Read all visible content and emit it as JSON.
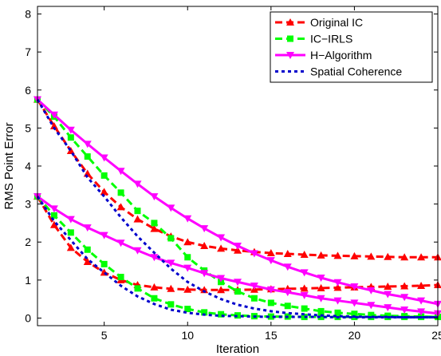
{
  "chart_data": {
    "type": "line",
    "title": "",
    "xlabel": "Iteration",
    "ylabel": "RMS Point Error",
    "xlim": [
      1,
      25
    ],
    "ylim": [
      -0.2,
      8.2
    ],
    "xticks": [
      5,
      10,
      15,
      20,
      25
    ],
    "yticks": [
      0,
      1,
      2,
      3,
      4,
      5,
      6,
      7,
      8
    ],
    "grid": false,
    "legend_position": "top-right",
    "legend": [
      {
        "name": "Original IC",
        "color": "#ff0000",
        "style": "dashed",
        "marker": "triangle-up"
      },
      {
        "name": "IC−IRLS",
        "color": "#00ff00",
        "style": "dashed",
        "marker": "square"
      },
      {
        "name": "H−Algorithm",
        "color": "#ff00ff",
        "style": "solid",
        "marker": "triangle-down"
      },
      {
        "name": "Spatial Coherence",
        "color": "#0000cc",
        "style": "dotted",
        "marker": "none"
      }
    ],
    "x": [
      1,
      2,
      3,
      4,
      5,
      6,
      7,
      8,
      9,
      10,
      11,
      12,
      13,
      14,
      15,
      16,
      17,
      18,
      19,
      20,
      21,
      22,
      23,
      24,
      25
    ],
    "series": [
      {
        "legend_index": 0,
        "values": [
          5.75,
          5.05,
          4.4,
          3.8,
          3.32,
          2.92,
          2.6,
          2.35,
          2.15,
          2.0,
          1.9,
          1.83,
          1.78,
          1.74,
          1.71,
          1.69,
          1.67,
          1.65,
          1.64,
          1.63,
          1.62,
          1.61,
          1.6,
          1.6,
          1.6
        ]
      },
      {
        "legend_index": 0,
        "values": [
          3.2,
          2.45,
          1.85,
          1.48,
          1.2,
          1.0,
          0.87,
          0.81,
          0.77,
          0.75,
          0.74,
          0.74,
          0.74,
          0.75,
          0.76,
          0.77,
          0.78,
          0.79,
          0.8,
          0.81,
          0.82,
          0.83,
          0.84,
          0.85,
          0.87
        ]
      },
      {
        "legend_index": 1,
        "values": [
          5.75,
          5.3,
          4.75,
          4.25,
          3.75,
          3.3,
          2.82,
          2.5,
          2.1,
          1.6,
          1.25,
          0.95,
          0.7,
          0.52,
          0.4,
          0.32,
          0.25,
          0.18,
          0.14,
          0.11,
          0.08,
          0.06,
          0.05,
          0.04,
          0.03
        ]
      },
      {
        "legend_index": 1,
        "values": [
          3.2,
          2.7,
          2.25,
          1.8,
          1.42,
          1.08,
          0.78,
          0.52,
          0.36,
          0.24,
          0.15,
          0.1,
          0.07,
          0.05,
          0.04,
          0.04,
          0.03,
          0.03,
          0.03,
          0.03,
          0.03,
          0.03,
          0.03,
          0.03,
          0.03
        ]
      },
      {
        "legend_index": 2,
        "values": [
          5.75,
          5.35,
          4.95,
          4.58,
          4.22,
          3.87,
          3.53,
          3.2,
          2.9,
          2.62,
          2.36,
          2.12,
          1.9,
          1.7,
          1.52,
          1.35,
          1.2,
          1.06,
          0.94,
          0.83,
          0.73,
          0.63,
          0.55,
          0.46,
          0.37
        ]
      },
      {
        "legend_index": 2,
        "values": [
          3.2,
          2.88,
          2.6,
          2.38,
          2.18,
          1.98,
          1.78,
          1.6,
          1.45,
          1.32,
          1.18,
          1.05,
          0.95,
          0.85,
          0.75,
          0.68,
          0.6,
          0.52,
          0.46,
          0.4,
          0.34,
          0.28,
          0.22,
          0.17,
          0.12
        ]
      },
      {
        "legend_index": 3,
        "values": [
          5.75,
          5.0,
          4.4,
          3.7,
          3.2,
          2.65,
          2.15,
          1.72,
          1.3,
          0.95,
          0.7,
          0.5,
          0.35,
          0.25,
          0.18,
          0.13,
          0.1,
          0.07,
          0.05,
          0.04,
          0.03,
          0.03,
          0.02,
          0.02,
          0.02
        ]
      },
      {
        "legend_index": 3,
        "values": [
          3.2,
          2.55,
          2.05,
          1.55,
          1.2,
          0.85,
          0.57,
          0.37,
          0.22,
          0.14,
          0.09,
          0.06,
          0.05,
          0.04,
          0.03,
          0.03,
          0.03,
          0.03,
          0.02,
          0.02,
          0.02,
          0.02,
          0.02,
          0.02,
          0.02
        ]
      }
    ]
  }
}
